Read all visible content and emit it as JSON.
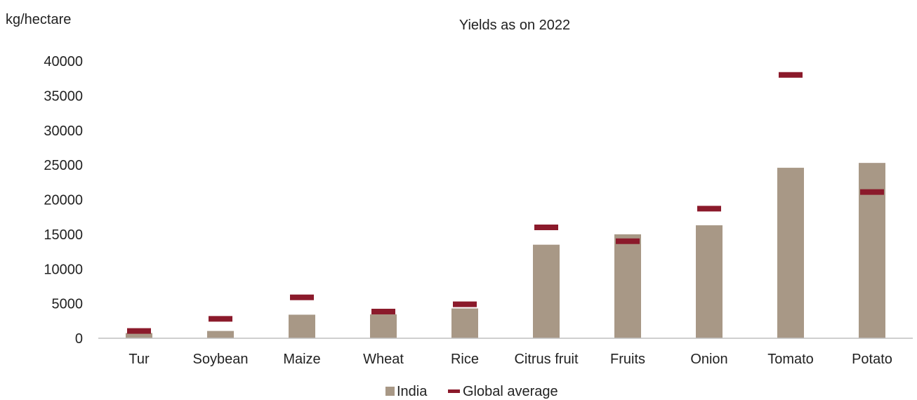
{
  "chart_data": {
    "type": "bar",
    "title": "Yields as on 2022",
    "ylabel": "kg/hectare",
    "xlabel": "",
    "ylim": [
      0,
      40000
    ],
    "yticks": [
      0,
      5000,
      10000,
      15000,
      20000,
      25000,
      30000,
      35000,
      40000
    ],
    "grid": false,
    "legend_position": "bottom",
    "categories": [
      "Tur",
      "Soybean",
      "Maize",
      "Wheat",
      "Rice",
      "Citrus fruit",
      "Fruits",
      "Onion",
      "Tomato",
      "Potato"
    ],
    "series": [
      {
        "name": "India",
        "kind": "bar",
        "color": "#a89886",
        "values": [
          750,
          1050,
          3400,
          3450,
          4300,
          13500,
          15000,
          16300,
          24600,
          25300
        ]
      },
      {
        "name": "Global average",
        "kind": "marker",
        "color": "#8b1a2b",
        "values": [
          1050,
          2800,
          5900,
          3850,
          4900,
          16000,
          14000,
          18700,
          38000,
          21100
        ]
      }
    ]
  }
}
